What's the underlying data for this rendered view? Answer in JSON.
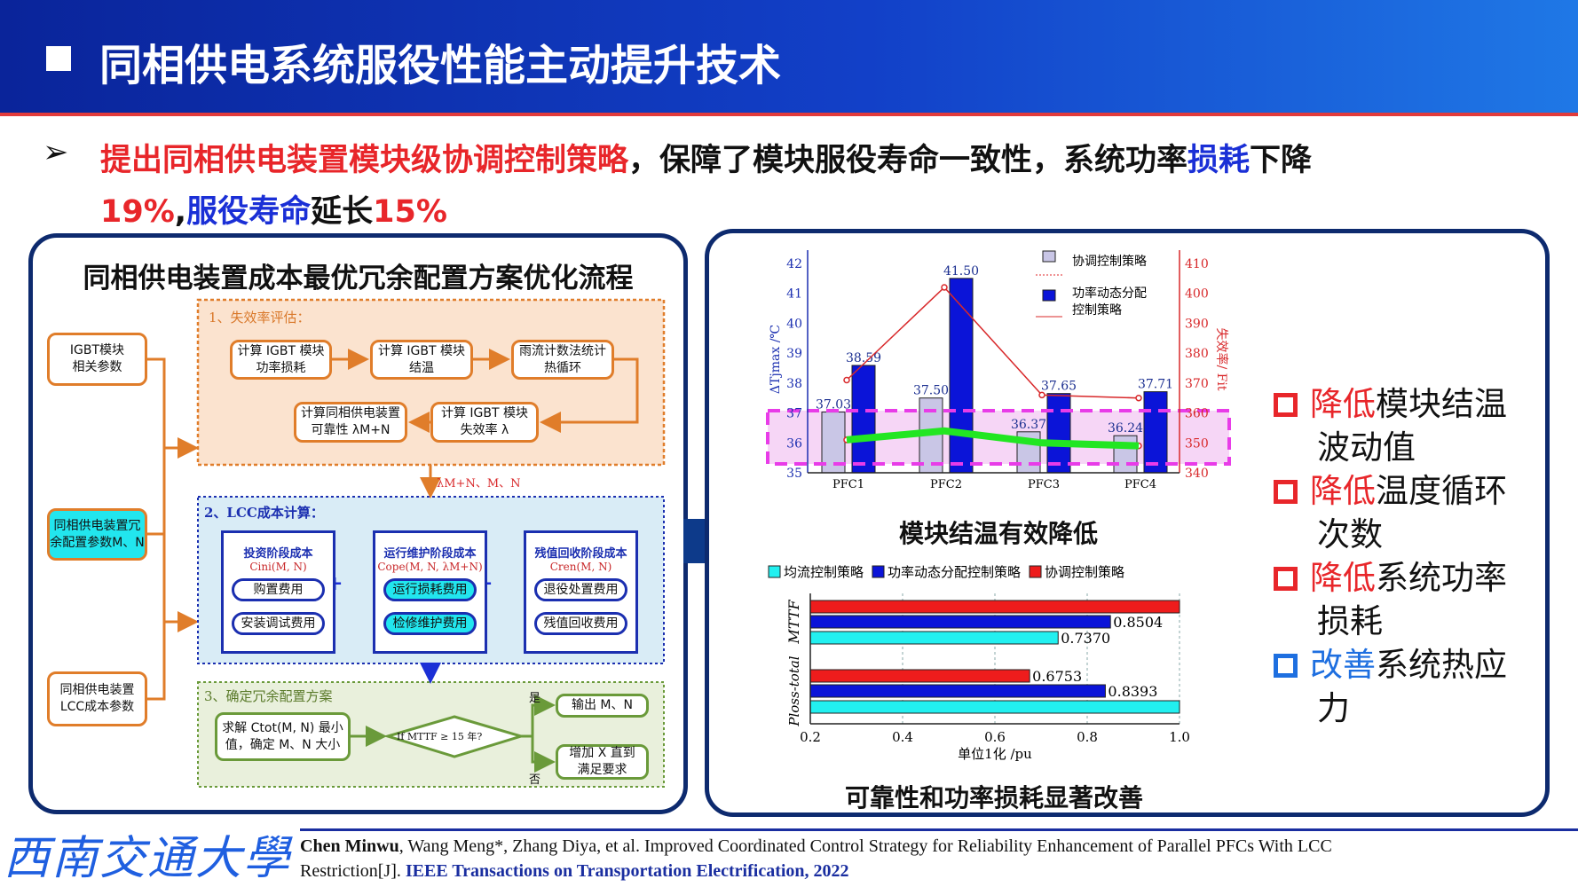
{
  "header": {
    "title": "同相供电系统服役性能主动提升技术"
  },
  "bullet": {
    "marker": "➢",
    "p1": "提出同相供电装置模块级协调控制策略",
    "p2": "，保障了模块服役寿命一致性，系统功率",
    "p3": "损耗",
    "p4": "下降",
    "p5": "19%",
    "p6": ",",
    "p7": "服役寿命",
    "p8": "延长",
    "p9": "15%"
  },
  "left_panel": {
    "title": "同相供电装置成本最优冗余配置方案优化流程",
    "inputs": [
      "IGBT模块\n相关参数",
      "同相供电装置冗\n余配置参数M、N",
      "同相供电装置\nLCC成本参数"
    ],
    "stage1": {
      "title": "1、失效率评估：",
      "boxes": [
        "计算 IGBT 模块\n功率损耗",
        "计算 IGBT 模块\n结温",
        "雨流计数法统计\n热循环",
        "计算 IGBT 模块\n失效率 λ",
        "计算同相供电装置\n可靠性 λM+N"
      ]
    },
    "link12": "λM+N、M、N",
    "stage2": {
      "title": "2、LCC成本计算：",
      "plus": "+",
      "groups": [
        {
          "title": "投资阶段成本",
          "formula": "Cini(M, N)",
          "items": [
            "购置费用",
            "安装调试费用"
          ]
        },
        {
          "title": "运行维护阶段成本",
          "formula": "Cope(M, N, λM+N)",
          "items": [
            "运行损耗费用",
            "检修维护费用"
          ]
        },
        {
          "title": "残值回收阶段成本",
          "formula": "Cren(M, N)",
          "items": [
            "退役处置费用",
            "残值回收费用"
          ]
        }
      ]
    },
    "stage3": {
      "title": "3、确定冗余配置方案",
      "solve": "求解 Ctot(M, N) 最小\n值，确定 M、N 大小",
      "decision": "If MTTF ≥ 15 年?",
      "yes": "是",
      "no": "否",
      "out_yes": "输出  M、N",
      "out_no": "增加 X 直到\n满足要求"
    }
  },
  "chart_data": [
    {
      "type": "bar",
      "categories": [
        "PFC1",
        "PFC2",
        "PFC3",
        "PFC4"
      ],
      "ylabel": "ΔTjmax /℃",
      "y2label": "失效率/ Fit",
      "ylim": [
        35,
        42
      ],
      "y2lim": [
        340,
        410
      ],
      "yticks": [
        "35",
        "36",
        "37",
        "38",
        "39",
        "40",
        "41",
        "42"
      ],
      "y2ticks": [
        "340",
        "350",
        "360",
        "370",
        "380",
        "390",
        "400",
        "410"
      ],
      "series": [
        {
          "name": "协调控制策略",
          "kind": "bar",
          "color": "#c9c6e6",
          "values": [
            37.03,
            37.5,
            36.37,
            36.24
          ],
          "labels": [
            "37.03",
            "37.50",
            "36.37",
            "36.24"
          ]
        },
        {
          "name": "功率动态分配控制策略",
          "kind": "bar",
          "color": "#0b14d8",
          "values": [
            38.59,
            41.5,
            37.65,
            37.71
          ],
          "labels": [
            "38.59",
            "41.50",
            "37.65",
            "37.71"
          ]
        },
        {
          "name": "协调控制策略",
          "kind": "line-dotted",
          "axis": "right",
          "color": "#e0262a",
          "values": [
            351,
            354,
            350,
            349
          ]
        },
        {
          "name": "功率动态分配控制策略",
          "kind": "line",
          "axis": "right",
          "color": "#d8282a",
          "values": [
            371,
            402,
            366,
            365
          ]
        }
      ],
      "highlight_color": "#e83ce8",
      "trend_color": "#22e622",
      "legend": "top-right",
      "caption": "模块结温有效降低"
    },
    {
      "type": "bar",
      "orientation": "horizontal",
      "categories": [
        "MTTF",
        "Ploss-total"
      ],
      "xlabel": "单位1化  /pu",
      "xlim": [
        0.2,
        1.0
      ],
      "xticks": [
        "0.2",
        "0.4",
        "0.6",
        "0.8",
        "1.0"
      ],
      "grid": true,
      "legend": "top",
      "series": [
        {
          "name": "协调控制策略",
          "color": "#ee1c1c",
          "values": [
            1.0,
            0.6753
          ],
          "labels": [
            "",
            "0.6753"
          ]
        },
        {
          "name": "功率动态分配控制策略",
          "color": "#0b14d8",
          "values": [
            0.8504,
            0.8393
          ],
          "labels": [
            "0.8504",
            "0.8393"
          ]
        },
        {
          "name": "均流控制策略",
          "color": "#22f0f0",
          "values": [
            0.737,
            1.0
          ],
          "labels": [
            "0.7370",
            ""
          ]
        }
      ],
      "legend_order": [
        "均流控制策略",
        "功率动态分配控制策略",
        "协调控制策略"
      ],
      "caption": "可靠性和功率损耗显著改善"
    }
  ],
  "right_list": [
    {
      "hl": "降低",
      "rest": "模块结温",
      "cont": "波动值",
      "color": "#e8262a"
    },
    {
      "hl": "降低",
      "rest": "温度循环",
      "cont": "次数",
      "color": "#e8262a"
    },
    {
      "hl": "降低",
      "rest": "系统功率",
      "cont": "损耗",
      "color": "#e8262a"
    },
    {
      "hl": "改善",
      "rest": "系统热应",
      "cont": "力",
      "color": "#1e6fe0"
    }
  ],
  "footer": {
    "logo": "西南交通大學",
    "authors_bold": "Chen Minwu",
    "authors": ", Wang Meng*, Zhang Diya, et al. Improved Coordinated Control Strategy for Reliability Enhancement of Parallel PFCs With LCC",
    "line2": "Restriction[J]. ",
    "journal": "IEEE Transactions on Transportation Electrification, 2022"
  }
}
